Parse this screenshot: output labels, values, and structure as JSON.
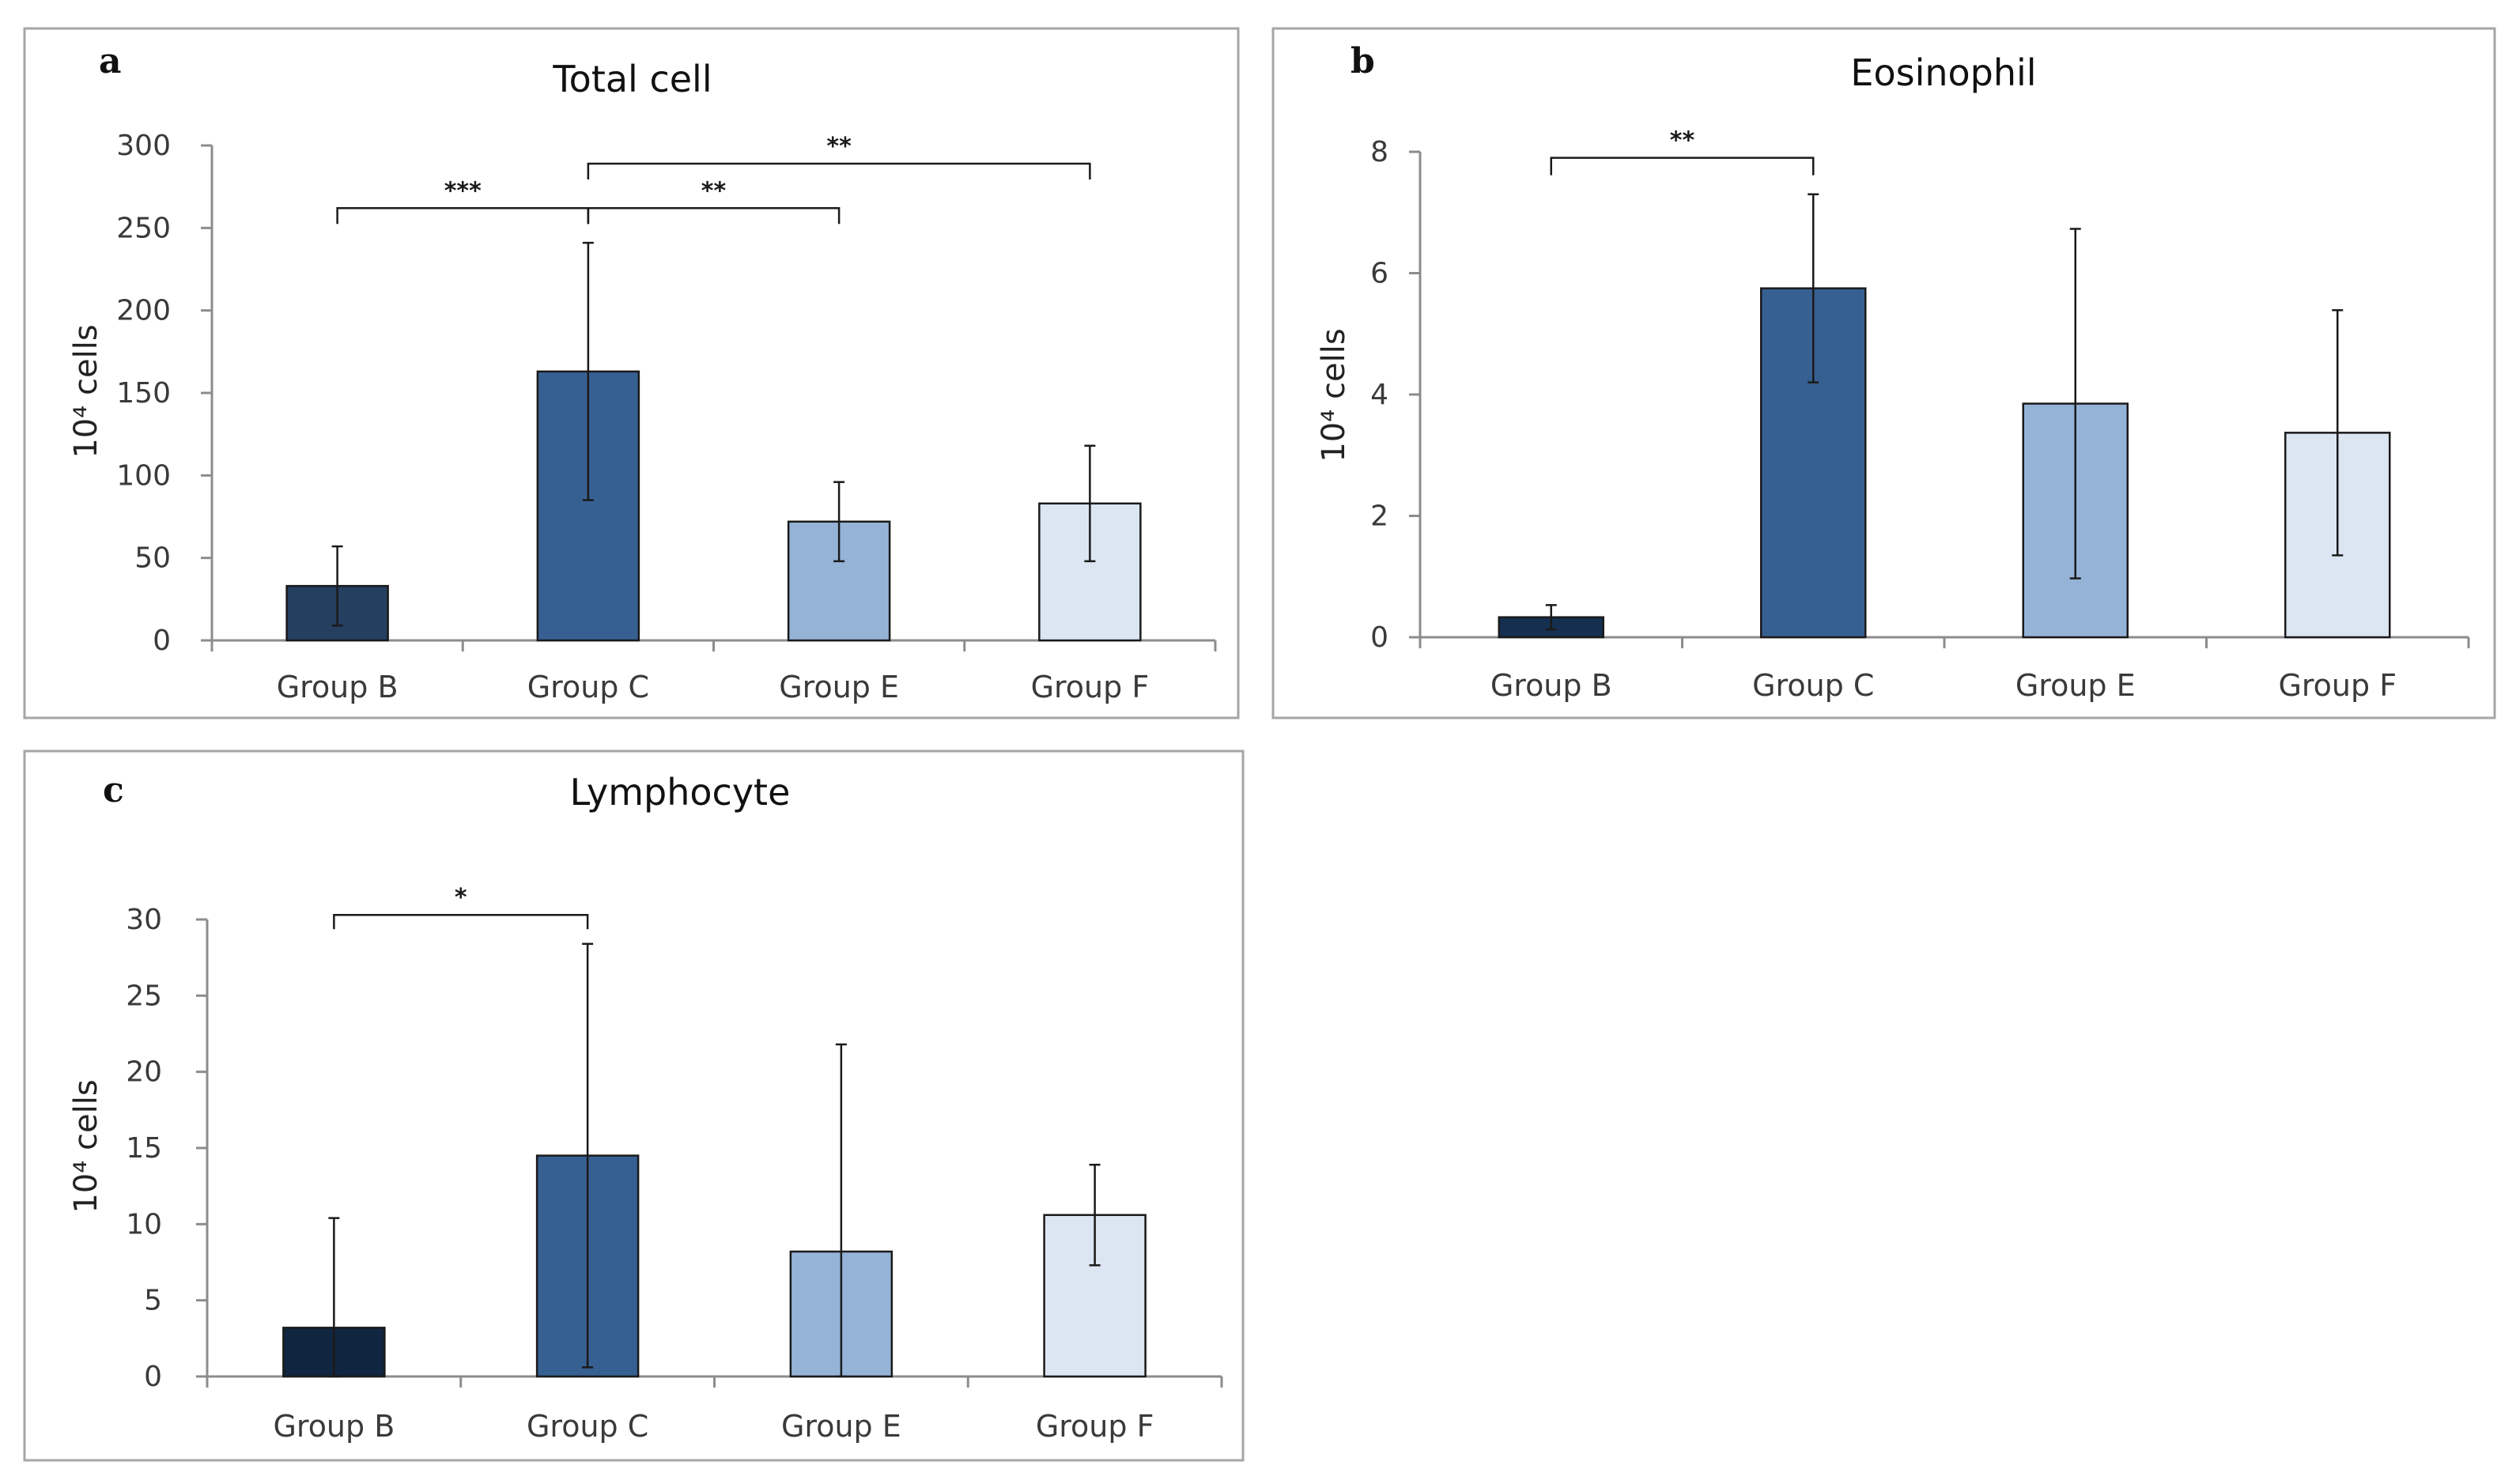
{
  "chart_data": [
    {
      "panel": "a",
      "type": "bar",
      "title": "Total cell",
      "ylabel": "10⁴ cells",
      "xlabel": "",
      "categories": [
        "Group B",
        "Group C",
        "Group E",
        "Group F"
      ],
      "values": [
        33,
        163,
        72,
        83
      ],
      "errors": [
        24,
        78,
        24,
        35
      ],
      "yticks": [
        0,
        50,
        100,
        150,
        200,
        250,
        300
      ],
      "ylim": [
        0,
        300
      ],
      "colors": [
        "#243f60",
        "#376092",
        "#95b3d7",
        "#dce6f2"
      ],
      "significance": [
        {
          "from": 0,
          "to": 1,
          "label": "***",
          "level": 262
        },
        {
          "from": 1,
          "to": 2,
          "label": "**",
          "level": 262
        },
        {
          "from": 1,
          "to": 3,
          "label": "**",
          "level": 289
        }
      ]
    },
    {
      "panel": "b",
      "type": "bar",
      "title": "Eosinophil",
      "ylabel": "10⁴ cells",
      "xlabel": "",
      "categories": [
        "Group B",
        "Group C",
        "Group E",
        "Group F"
      ],
      "values": [
        0.33,
        5.75,
        3.85,
        3.37
      ],
      "errors": [
        0.2,
        1.55,
        2.88,
        2.02
      ],
      "yticks": [
        0,
        2,
        4,
        6,
        8
      ],
      "ylim": [
        0,
        8
      ],
      "colors": [
        "#142f4f",
        "#376092",
        "#95b3d7",
        "#dce6f2"
      ],
      "significance": [
        {
          "from": 0,
          "to": 1,
          "label": "**",
          "level": 7.9
        }
      ]
    },
    {
      "panel": "c",
      "type": "bar",
      "title": "Lymphocyte",
      "ylabel": "10⁴ cells",
      "xlabel": "",
      "categories": [
        "Group B",
        "Group C",
        "Group E",
        "Group F"
      ],
      "values": [
        3.2,
        14.5,
        8.2,
        10.6
      ],
      "errors": [
        7.2,
        13.9,
        13.6,
        3.3
      ],
      "yticks": [
        0,
        5,
        10,
        15,
        20,
        25,
        30
      ],
      "ylim": [
        0,
        30
      ],
      "colors": [
        "#10253f",
        "#376092",
        "#95b3d7",
        "#dce6f2"
      ],
      "significance": [
        {
          "from": 0,
          "to": 1,
          "label": "*",
          "level": 30.3
        }
      ]
    }
  ]
}
